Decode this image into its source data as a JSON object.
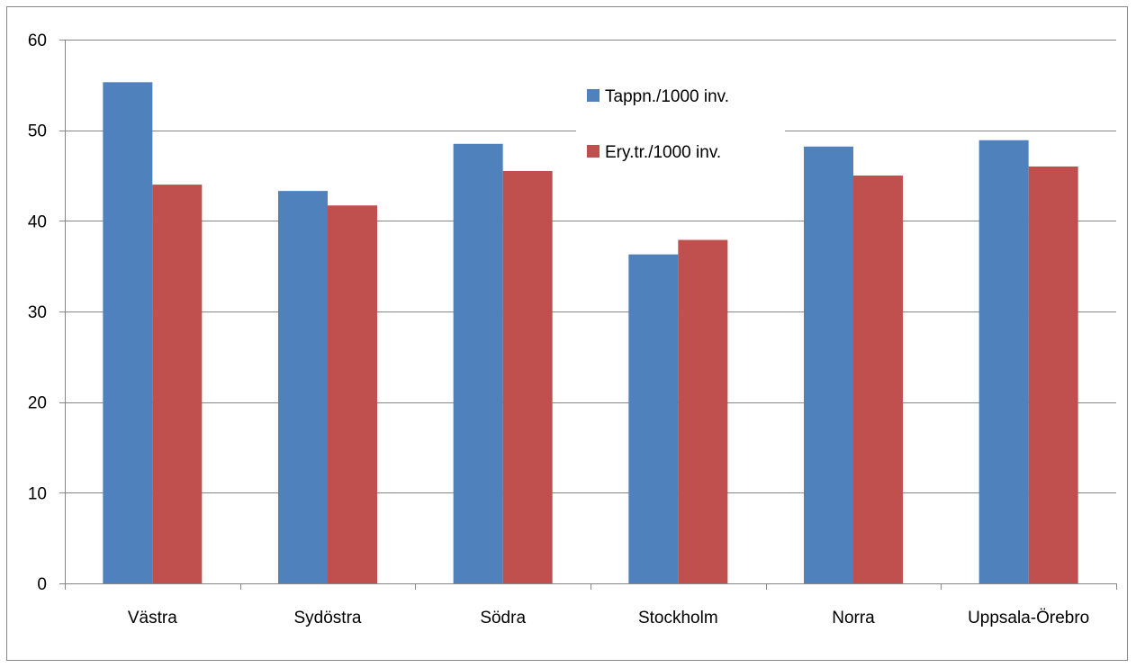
{
  "chart_data": {
    "type": "bar",
    "categories": [
      "Västra",
      "Sydöstra",
      "Södra",
      "Stockholm",
      "Norra",
      "Uppsala-Örebro"
    ],
    "series": [
      {
        "name": "Tappn./1000 inv.",
        "color": "#4F81BD",
        "values": [
          55.3,
          43.3,
          48.5,
          36.3,
          48.2,
          48.9
        ]
      },
      {
        "name": "Ery.tr./1000 inv.",
        "color": "#C0504D",
        "values": [
          44.0,
          41.7,
          45.5,
          37.9,
          45.0,
          46.0
        ]
      }
    ],
    "title": "",
    "xlabel": "",
    "ylabel": "",
    "ylim": [
      0,
      60
    ],
    "yticks": [
      0,
      10,
      20,
      30,
      40,
      50,
      60
    ],
    "grid": true,
    "legend_position": "top-right"
  }
}
